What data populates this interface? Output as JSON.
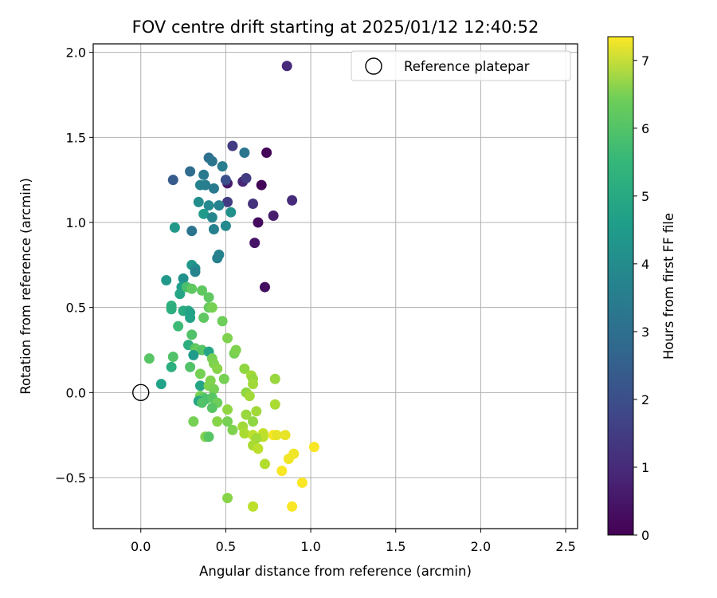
{
  "chart_data": {
    "type": "scatter",
    "title": "FOV centre drift starting at 2025/01/12 12:40:52",
    "xlabel": "Angular distance from reference (arcmin)",
    "ylabel": "Rotation from reference (arcmin)",
    "xlim": [
      -0.28,
      2.57
    ],
    "ylim": [
      -0.8,
      2.05
    ],
    "x_ticks": [
      0.0,
      0.5,
      1.0,
      1.5,
      2.0,
      2.5
    ],
    "x_tick_labels": [
      "0.0",
      "0.5",
      "1.0",
      "1.5",
      "2.0",
      "2.5"
    ],
    "y_ticks": [
      -0.5,
      0.0,
      0.5,
      1.0,
      1.5,
      2.0
    ],
    "y_tick_labels": [
      "−0.5",
      "0.0",
      "0.5",
      "1.0",
      "1.5",
      "2.0"
    ],
    "grid": true,
    "legend": {
      "label": "Reference platepar",
      "position": "top-right"
    },
    "reference_point": {
      "x": 0.0,
      "y": 0.0
    },
    "colorbar": {
      "label": "Hours from first FF file",
      "colormap": "viridis",
      "range": [
        0,
        7.35
      ],
      "ticks": [
        0,
        1,
        2,
        3,
        4,
        5,
        6,
        7
      ],
      "tick_labels": [
        "0",
        "1",
        "2",
        "3",
        "4",
        "5",
        "6",
        "7"
      ]
    },
    "series": [
      {
        "name": "Reference platepar",
        "points": [
          {
            "x": 0.86,
            "y": 1.92,
            "c": 0.9
          },
          {
            "x": 0.74,
            "y": 1.41,
            "c": 0.1
          },
          {
            "x": 0.54,
            "y": 1.45,
            "c": 1.3
          },
          {
            "x": 0.61,
            "y": 1.41,
            "c": 2.9
          },
          {
            "x": 0.89,
            "y": 1.13,
            "c": 0.9
          },
          {
            "x": 0.71,
            "y": 1.22,
            "c": 0.1
          },
          {
            "x": 0.6,
            "y": 1.24,
            "c": 0.8
          },
          {
            "x": 0.62,
            "y": 1.26,
            "c": 1.3
          },
          {
            "x": 0.51,
            "y": 1.23,
            "c": 0.5
          },
          {
            "x": 0.5,
            "y": 1.25,
            "c": 1.8
          },
          {
            "x": 0.51,
            "y": 1.12,
            "c": 1.3
          },
          {
            "x": 0.66,
            "y": 1.11,
            "c": 1.1
          },
          {
            "x": 0.78,
            "y": 1.04,
            "c": 0.6
          },
          {
            "x": 0.69,
            "y": 1.0,
            "c": 0.2
          },
          {
            "x": 0.67,
            "y": 0.88,
            "c": 0.4
          },
          {
            "x": 0.73,
            "y": 0.62,
            "c": 0.3
          },
          {
            "x": 0.19,
            "y": 1.25,
            "c": 2.1
          },
          {
            "x": 0.29,
            "y": 1.3,
            "c": 2.6
          },
          {
            "x": 0.4,
            "y": 1.38,
            "c": 2.7
          },
          {
            "x": 0.42,
            "y": 1.36,
            "c": 2.9
          },
          {
            "x": 0.48,
            "y": 1.33,
            "c": 3.1
          },
          {
            "x": 0.37,
            "y": 1.28,
            "c": 3.0
          },
          {
            "x": 0.35,
            "y": 1.22,
            "c": 3.3
          },
          {
            "x": 0.38,
            "y": 1.22,
            "c": 3.1
          },
          {
            "x": 0.43,
            "y": 1.2,
            "c": 3.0
          },
          {
            "x": 0.34,
            "y": 1.12,
            "c": 3.6
          },
          {
            "x": 0.4,
            "y": 1.1,
            "c": 3.5
          },
          {
            "x": 0.46,
            "y": 1.1,
            "c": 3.3
          },
          {
            "x": 0.53,
            "y": 1.06,
            "c": 3.7
          },
          {
            "x": 0.37,
            "y": 1.05,
            "c": 4.0
          },
          {
            "x": 0.42,
            "y": 1.03,
            "c": 3.4
          },
          {
            "x": 0.2,
            "y": 0.97,
            "c": 3.9
          },
          {
            "x": 0.3,
            "y": 0.95,
            "c": 2.8
          },
          {
            "x": 0.43,
            "y": 0.96,
            "c": 3.2
          },
          {
            "x": 0.5,
            "y": 0.98,
            "c": 3.5
          },
          {
            "x": 0.46,
            "y": 0.81,
            "c": 3.3
          },
          {
            "x": 0.45,
            "y": 0.79,
            "c": 3.2
          },
          {
            "x": 0.3,
            "y": 0.75,
            "c": 3.9
          },
          {
            "x": 0.32,
            "y": 0.73,
            "c": 3.6
          },
          {
            "x": 0.32,
            "y": 0.71,
            "c": 3.3
          },
          {
            "x": 0.15,
            "y": 0.66,
            "c": 3.9
          },
          {
            "x": 0.25,
            "y": 0.67,
            "c": 3.7
          },
          {
            "x": 0.24,
            "y": 0.62,
            "c": 4.1
          },
          {
            "x": 0.23,
            "y": 0.58,
            "c": 4.3
          },
          {
            "x": 0.27,
            "y": 0.62,
            "c": 5.2
          },
          {
            "x": 0.3,
            "y": 0.61,
            "c": 5.5
          },
          {
            "x": 0.36,
            "y": 0.6,
            "c": 5.5
          },
          {
            "x": 0.4,
            "y": 0.56,
            "c": 5.5
          },
          {
            "x": 0.18,
            "y": 0.51,
            "c": 4.7
          },
          {
            "x": 0.18,
            "y": 0.49,
            "c": 4.6
          },
          {
            "x": 0.25,
            "y": 0.48,
            "c": 4.5
          },
          {
            "x": 0.28,
            "y": 0.48,
            "c": 4.4
          },
          {
            "x": 0.29,
            "y": 0.47,
            "c": 4.2
          },
          {
            "x": 0.29,
            "y": 0.44,
            "c": 4.2
          },
          {
            "x": 0.37,
            "y": 0.44,
            "c": 5.5
          },
          {
            "x": 0.4,
            "y": 0.5,
            "c": 5.6
          },
          {
            "x": 0.42,
            "y": 0.5,
            "c": 5.8
          },
          {
            "x": 0.48,
            "y": 0.42,
            "c": 5.7
          },
          {
            "x": 0.22,
            "y": 0.39,
            "c": 5.0
          },
          {
            "x": 0.3,
            "y": 0.34,
            "c": 5.3
          },
          {
            "x": 0.51,
            "y": 0.32,
            "c": 5.9
          },
          {
            "x": 0.28,
            "y": 0.28,
            "c": 4.6
          },
          {
            "x": 0.32,
            "y": 0.26,
            "c": 5.4
          },
          {
            "x": 0.33,
            "y": 0.25,
            "c": 5.6
          },
          {
            "x": 0.36,
            "y": 0.25,
            "c": 5.4
          },
          {
            "x": 0.4,
            "y": 0.24,
            "c": 4.3
          },
          {
            "x": 0.31,
            "y": 0.22,
            "c": 4.0
          },
          {
            "x": 0.55,
            "y": 0.23,
            "c": 5.8
          },
          {
            "x": 0.56,
            "y": 0.25,
            "c": 5.9
          },
          {
            "x": 0.05,
            "y": 0.2,
            "c": 5.4
          },
          {
            "x": 0.19,
            "y": 0.21,
            "c": 5.3
          },
          {
            "x": 0.42,
            "y": 0.2,
            "c": 5.8
          },
          {
            "x": 0.43,
            "y": 0.17,
            "c": 5.9
          },
          {
            "x": 0.45,
            "y": 0.14,
            "c": 6.0
          },
          {
            "x": 0.18,
            "y": 0.15,
            "c": 4.6
          },
          {
            "x": 0.29,
            "y": 0.15,
            "c": 5.3
          },
          {
            "x": 0.35,
            "y": 0.11,
            "c": 5.8
          },
          {
            "x": 0.61,
            "y": 0.14,
            "c": 6.1
          },
          {
            "x": 0.65,
            "y": 0.1,
            "c": 6.3
          },
          {
            "x": 0.66,
            "y": 0.08,
            "c": 6.2
          },
          {
            "x": 0.49,
            "y": 0.08,
            "c": 5.8
          },
          {
            "x": 0.79,
            "y": 0.08,
            "c": 6.2
          },
          {
            "x": 0.41,
            "y": 0.07,
            "c": 5.9
          },
          {
            "x": 0.66,
            "y": 0.05,
            "c": 6.3
          },
          {
            "x": 0.12,
            "y": 0.05,
            "c": 4.2
          },
          {
            "x": 0.35,
            "y": 0.04,
            "c": 4.3
          },
          {
            "x": 0.4,
            "y": 0.04,
            "c": 5.9
          },
          {
            "x": 0.43,
            "y": 0.02,
            "c": 5.8
          },
          {
            "x": 0.62,
            "y": 0.0,
            "c": 6.1
          },
          {
            "x": 0.64,
            "y": -0.02,
            "c": 6.3
          },
          {
            "x": 0.35,
            "y": -0.02,
            "c": 5.8
          },
          {
            "x": 0.37,
            "y": -0.03,
            "c": 5.5
          },
          {
            "x": 0.38,
            "y": -0.04,
            "c": 5.2
          },
          {
            "x": 0.42,
            "y": -0.03,
            "c": 5.4
          },
          {
            "x": 0.34,
            "y": -0.05,
            "c": 4.3
          },
          {
            "x": 0.36,
            "y": -0.06,
            "c": 5.3
          },
          {
            "x": 0.45,
            "y": -0.06,
            "c": 5.7
          },
          {
            "x": 0.42,
            "y": -0.09,
            "c": 5.4
          },
          {
            "x": 0.79,
            "y": -0.07,
            "c": 6.4
          },
          {
            "x": 0.51,
            "y": -0.1,
            "c": 6.1
          },
          {
            "x": 0.68,
            "y": -0.11,
            "c": 6.3
          },
          {
            "x": 0.62,
            "y": -0.13,
            "c": 6.2
          },
          {
            "x": 0.31,
            "y": -0.17,
            "c": 5.8
          },
          {
            "x": 0.45,
            "y": -0.17,
            "c": 6.0
          },
          {
            "x": 0.51,
            "y": -0.17,
            "c": 5.8
          },
          {
            "x": 0.66,
            "y": -0.17,
            "c": 6.1
          },
          {
            "x": 0.54,
            "y": -0.22,
            "c": 5.9
          },
          {
            "x": 0.6,
            "y": -0.2,
            "c": 6.3
          },
          {
            "x": 0.61,
            "y": -0.24,
            "c": 6.4
          },
          {
            "x": 0.72,
            "y": -0.24,
            "c": 6.7
          },
          {
            "x": 0.72,
            "y": -0.26,
            "c": 6.6
          },
          {
            "x": 0.38,
            "y": -0.26,
            "c": 5.9
          },
          {
            "x": 0.4,
            "y": -0.26,
            "c": 5.4
          },
          {
            "x": 0.66,
            "y": -0.25,
            "c": 6.6
          },
          {
            "x": 0.68,
            "y": -0.27,
            "c": 6.3
          },
          {
            "x": 0.78,
            "y": -0.25,
            "c": 7.3
          },
          {
            "x": 0.8,
            "y": -0.25,
            "c": 7.1
          },
          {
            "x": 0.85,
            "y": -0.25,
            "c": 7.1
          },
          {
            "x": 0.66,
            "y": -0.31,
            "c": 6.4
          },
          {
            "x": 0.69,
            "y": -0.33,
            "c": 6.6
          },
          {
            "x": 1.02,
            "y": -0.32,
            "c": 7.3
          },
          {
            "x": 0.9,
            "y": -0.36,
            "c": 7.2
          },
          {
            "x": 0.87,
            "y": -0.39,
            "c": 7.2
          },
          {
            "x": 0.73,
            "y": -0.42,
            "c": 6.5
          },
          {
            "x": 0.83,
            "y": -0.46,
            "c": 7.3
          },
          {
            "x": 0.95,
            "y": -0.53,
            "c": 7.3
          },
          {
            "x": 0.51,
            "y": -0.62,
            "c": 6.0
          },
          {
            "x": 0.66,
            "y": -0.67,
            "c": 6.6
          },
          {
            "x": 0.89,
            "y": -0.67,
            "c": 7.3
          }
        ]
      }
    ]
  }
}
